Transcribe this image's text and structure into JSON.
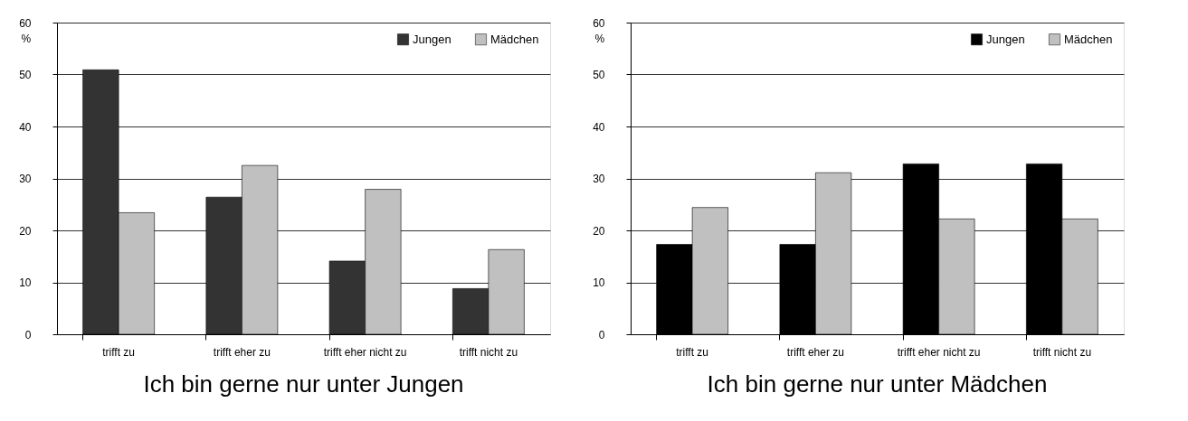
{
  "chart_data": [
    {
      "type": "bar",
      "title": "Ich bin gerne nur unter Jungen",
      "ylabel": "%",
      "categories": [
        "trifft zu",
        "trifft eher zu",
        "trifft eher nicht zu",
        "trifft nicht zu"
      ],
      "series": [
        {
          "name": "Jungen",
          "color": "#333333",
          "values": [
            50.9,
            26.4,
            14.1,
            8.8
          ]
        },
        {
          "name": "Mädchen",
          "color": "#c0c0c0",
          "values": [
            23.4,
            32.5,
            27.9,
            16.3
          ]
        }
      ],
      "ylim": [
        0,
        60
      ],
      "yticks": [
        0,
        10,
        20,
        30,
        40,
        50,
        60
      ],
      "grid": "y",
      "legend": "top right"
    },
    {
      "type": "bar",
      "title": "Ich bin gerne nur unter Mädchen",
      "ylabel": "%",
      "categories": [
        "trifft zu",
        "trifft eher zu",
        "trifft eher nicht zu",
        "trifft nicht zu"
      ],
      "series": [
        {
          "name": "Jungen",
          "color": "#000000",
          "values": [
            17.3,
            17.3,
            32.8,
            32.8
          ]
        },
        {
          "name": "Mädchen",
          "color": "#c0c0c0",
          "values": [
            24.4,
            31.1,
            22.2,
            22.2
          ]
        }
      ],
      "ylim": [
        0,
        60
      ],
      "yticks": [
        0,
        10,
        20,
        30,
        40,
        50,
        60
      ],
      "grid": "y",
      "legend": "top right"
    }
  ]
}
